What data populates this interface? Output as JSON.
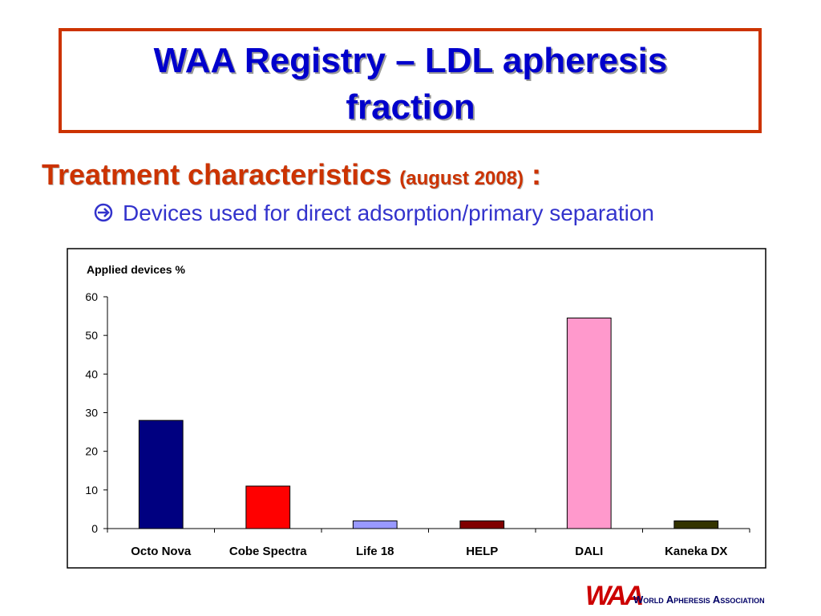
{
  "title_lines": [
    "WAA Registry – LDL apheresis",
    "fraction"
  ],
  "heading": {
    "main": "Treatment characteristics",
    "note": "(august 2008)",
    "colon": ":"
  },
  "bullet": "Devices used for direct adsorption/primary separation",
  "logo": {
    "mark": "WAA",
    "text": "World Apheresis Association"
  },
  "chart_data": {
    "type": "bar",
    "ylabel": "Applied devices %",
    "categories": [
      "Octo Nova",
      "Cobe Spectra",
      "Life 18",
      "HELP",
      "DALI",
      "Kaneka DX"
    ],
    "values": [
      28,
      11,
      2,
      2,
      54.5,
      2
    ],
    "colors": [
      "#000080",
      "#ff0000",
      "#9999ff",
      "#800000",
      "#ff99cc",
      "#333300"
    ],
    "ylim": [
      0,
      60
    ],
    "yticks": [
      0,
      10,
      20,
      30,
      40,
      50,
      60
    ],
    "grid": false
  }
}
